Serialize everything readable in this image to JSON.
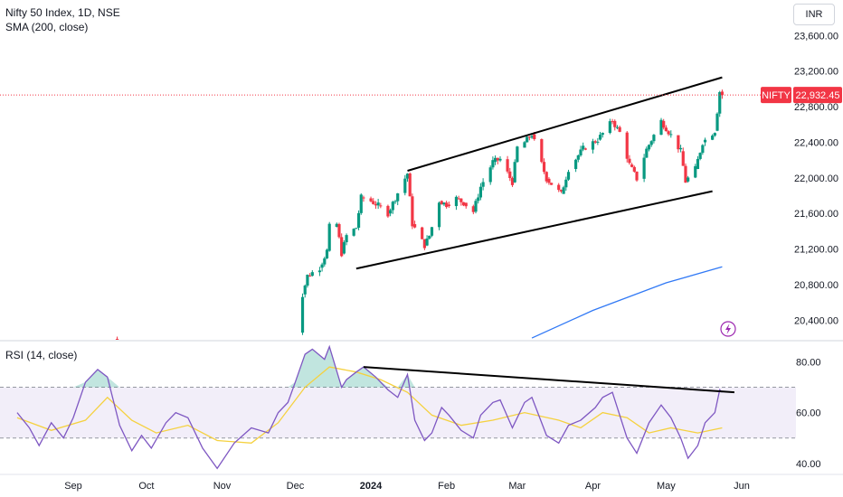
{
  "header": {
    "title": "Nifty 50 Index, 1D, NSE",
    "indicator": "SMA (200, close)",
    "currency": "INR"
  },
  "rsi_panel": {
    "label": "RSI (14, close)"
  },
  "colors": {
    "up": "#089981",
    "down": "#f23645",
    "sma": "#3179f5",
    "rsi": "#7e57c2",
    "rsi_ma": "#f5d13f",
    "price_line": "#f23645",
    "trend": "#000000"
  },
  "price_badges": {
    "symbol": "NIFTY",
    "last": "22,932.45"
  },
  "chart_data": [
    {
      "type": "candlestick",
      "title": "Nifty 50 Index, 1D, NSE",
      "y_ticks": [
        "20,400.00",
        "20,800.00",
        "21,200.00",
        "21,600.00",
        "22,000.00",
        "22,400.00",
        "22,800.00",
        "23,200.00",
        "23,600.00"
      ],
      "y_tick_values": [
        20400,
        20800,
        21200,
        21600,
        22000,
        22400,
        22800,
        23200,
        23600
      ],
      "ylim": [
        20180,
        24000
      ],
      "x_ticks": [
        "Sep",
        "Oct",
        "Nov",
        "Dec",
        "2024",
        "Feb",
        "Mar",
        "Apr",
        "May",
        "Jun"
      ],
      "x_tick_dates": [
        "2023-09-01",
        "2023-10-01",
        "2023-11-01",
        "2023-12-01",
        "2024-01-01",
        "2024-02-01",
        "2024-03-01",
        "2024-04-01",
        "2024-05-01",
        "2024-06-01"
      ],
      "last_price": 22932.45,
      "price_path": [
        [
          "2023-09-18",
          20190
        ],
        [
          "2023-09-20",
          20120
        ],
        [
          "2023-12-01",
          20260
        ],
        [
          "2023-12-04",
          20690
        ],
        [
          "2023-12-06",
          20900
        ],
        [
          "2023-12-11",
          20990
        ],
        [
          "2023-12-14",
          21180
        ],
        [
          "2023-12-15",
          21450
        ],
        [
          "2023-12-18",
          21480
        ],
        [
          "2023-12-20",
          21150
        ],
        [
          "2023-12-22",
          21350
        ],
        [
          "2023-12-26",
          21440
        ],
        [
          "2023-12-28",
          21780
        ],
        [
          "2024-01-01",
          21740
        ],
        [
          "2024-01-04",
          21690
        ],
        [
          "2024-01-08",
          21600
        ],
        [
          "2024-01-12",
          21830
        ],
        [
          "2024-01-16",
          22050
        ],
        [
          "2024-01-18",
          21480
        ],
        [
          "2024-01-23",
          21240
        ],
        [
          "2024-01-25",
          21350
        ],
        [
          "2024-01-29",
          21740
        ],
        [
          "2024-02-01",
          21700
        ],
        [
          "2024-02-05",
          21770
        ],
        [
          "2024-02-08",
          21720
        ],
        [
          "2024-02-12",
          21620
        ],
        [
          "2024-02-15",
          21900
        ],
        [
          "2024-02-20",
          22180
        ],
        [
          "2024-02-23",
          22210
        ],
        [
          "2024-02-28",
          21950
        ],
        [
          "2024-03-01",
          22340
        ],
        [
          "2024-03-04",
          22400
        ],
        [
          "2024-03-07",
          22490
        ],
        [
          "2024-03-13",
          21990
        ],
        [
          "2024-03-19",
          21820
        ],
        [
          "2024-03-22",
          22100
        ],
        [
          "2024-03-28",
          22330
        ],
        [
          "2024-04-03",
          22430
        ],
        [
          "2024-04-09",
          22640
        ],
        [
          "2024-04-12",
          22510
        ],
        [
          "2024-04-16",
          22150
        ],
        [
          "2024-04-19",
          21990
        ],
        [
          "2024-04-23",
          22320
        ],
        [
          "2024-04-29",
          22640
        ],
        [
          "2024-05-03",
          22480
        ],
        [
          "2024-05-07",
          22300
        ],
        [
          "2024-05-09",
          21960
        ],
        [
          "2024-05-13",
          22100
        ],
        [
          "2024-05-16",
          22400
        ],
        [
          "2024-05-21",
          22530
        ],
        [
          "2024-05-23",
          22970
        ],
        [
          "2024-05-24",
          22932.45
        ]
      ],
      "sma_200": [
        [
          "2024-03-07",
          20200
        ],
        [
          "2024-04-01",
          20510
        ],
        [
          "2024-05-01",
          20820
        ],
        [
          "2024-05-24",
          21000
        ]
      ],
      "trendlines": [
        {
          "from": [
            "2024-01-16",
            22080
          ],
          "to": [
            "2024-05-24",
            23130
          ]
        },
        {
          "from": [
            "2023-12-26",
            20980
          ],
          "to": [
            "2024-05-20",
            21850
          ]
        }
      ]
    },
    {
      "type": "line",
      "title": "RSI (14, close)",
      "y_ticks": [
        "40.00",
        "60.00",
        "80.00"
      ],
      "y_tick_values": [
        40,
        60,
        80
      ],
      "ylim": [
        36,
        88
      ],
      "band": [
        50,
        70
      ],
      "series": [
        {
          "values": [
            [
              "2023-08-09",
              60
            ],
            [
              "2023-08-14",
              54
            ],
            [
              "2023-08-18",
              47
            ],
            [
              "2023-08-23",
              56
            ],
            [
              "2023-08-28",
              50
            ],
            [
              "2023-09-01",
              58
            ],
            [
              "2023-09-06",
              72
            ],
            [
              "2023-09-11",
              77
            ],
            [
              "2023-09-15",
              74
            ],
            [
              "2023-09-20",
              55
            ],
            [
              "2023-09-25",
              45
            ],
            [
              "2023-09-29",
              51
            ],
            [
              "2023-10-03",
              46
            ],
            [
              "2023-10-09",
              56
            ],
            [
              "2023-10-13",
              60
            ],
            [
              "2023-10-18",
              58
            ],
            [
              "2023-10-24",
              46
            ],
            [
              "2023-10-30",
              38
            ],
            [
              "2023-11-06",
              48
            ],
            [
              "2023-11-13",
              54
            ],
            [
              "2023-11-20",
              52
            ],
            [
              "2023-11-24",
              60
            ],
            [
              "2023-11-28",
              64
            ],
            [
              "2023-12-01",
              72
            ],
            [
              "2023-12-05",
              83
            ],
            [
              "2023-12-08",
              85
            ],
            [
              "2023-12-13",
              81
            ],
            [
              "2023-12-15",
              86
            ],
            [
              "2023-12-20",
              70
            ],
            [
              "2023-12-22",
              73
            ],
            [
              "2023-12-26",
              76
            ],
            [
              "2023-12-29",
              78
            ],
            [
              "2024-01-03",
              74
            ],
            [
              "2024-01-08",
              69
            ],
            [
              "2024-01-12",
              66
            ],
            [
              "2024-01-16",
              75
            ],
            [
              "2024-01-19",
              57
            ],
            [
              "2024-01-23",
              49
            ],
            [
              "2024-01-26",
              52
            ],
            [
              "2024-01-30",
              62
            ],
            [
              "2024-02-02",
              59
            ],
            [
              "2024-02-07",
              53
            ],
            [
              "2024-02-12",
              50
            ],
            [
              "2024-02-15",
              59
            ],
            [
              "2024-02-20",
              64
            ],
            [
              "2024-02-23",
              65
            ],
            [
              "2024-02-28",
              54
            ],
            [
              "2024-03-04",
              64
            ],
            [
              "2024-03-07",
              66
            ],
            [
              "2024-03-13",
              51
            ],
            [
              "2024-03-18",
              48
            ],
            [
              "2024-03-22",
              55
            ],
            [
              "2024-03-27",
              57
            ],
            [
              "2024-04-02",
              62
            ],
            [
              "2024-04-05",
              66
            ],
            [
              "2024-04-09",
              68
            ],
            [
              "2024-04-15",
              50
            ],
            [
              "2024-04-19",
              44
            ],
            [
              "2024-04-24",
              56
            ],
            [
              "2024-04-29",
              63
            ],
            [
              "2024-05-03",
              58
            ],
            [
              "2024-05-07",
              50
            ],
            [
              "2024-05-10",
              42
            ],
            [
              "2024-05-14",
              47
            ],
            [
              "2024-05-17",
              56
            ],
            [
              "2024-05-21",
              60
            ],
            [
              "2024-05-23",
              69
            ],
            [
              "2024-05-24",
              68
            ]
          ]
        },
        {
          "values": [
            [
              "2023-08-09",
              58
            ],
            [
              "2023-08-23",
              53
            ],
            [
              "2023-09-06",
              57
            ],
            [
              "2023-09-15",
              66
            ],
            [
              "2023-09-25",
              57
            ],
            [
              "2023-10-05",
              52
            ],
            [
              "2023-10-18",
              55
            ],
            [
              "2023-10-30",
              49
            ],
            [
              "2023-11-13",
              48
            ],
            [
              "2023-11-24",
              56
            ],
            [
              "2023-12-05",
              70
            ],
            [
              "2023-12-15",
              78
            ],
            [
              "2023-12-26",
              76
            ],
            [
              "2024-01-05",
              73
            ],
            [
              "2024-01-16",
              68
            ],
            [
              "2024-01-26",
              59
            ],
            [
              "2024-02-07",
              55
            ],
            [
              "2024-02-20",
              57
            ],
            [
              "2024-03-04",
              60
            ],
            [
              "2024-03-18",
              57
            ],
            [
              "2024-03-27",
              54
            ],
            [
              "2024-04-05",
              60
            ],
            [
              "2024-04-15",
              58
            ],
            [
              "2024-04-24",
              52
            ],
            [
              "2024-05-03",
              54
            ],
            [
              "2024-05-14",
              52
            ],
            [
              "2024-05-24",
              54
            ]
          ]
        }
      ],
      "trendline": {
        "from": [
          "2023-12-29",
          78
        ],
        "to": [
          "2024-05-29",
          68
        ]
      }
    }
  ]
}
